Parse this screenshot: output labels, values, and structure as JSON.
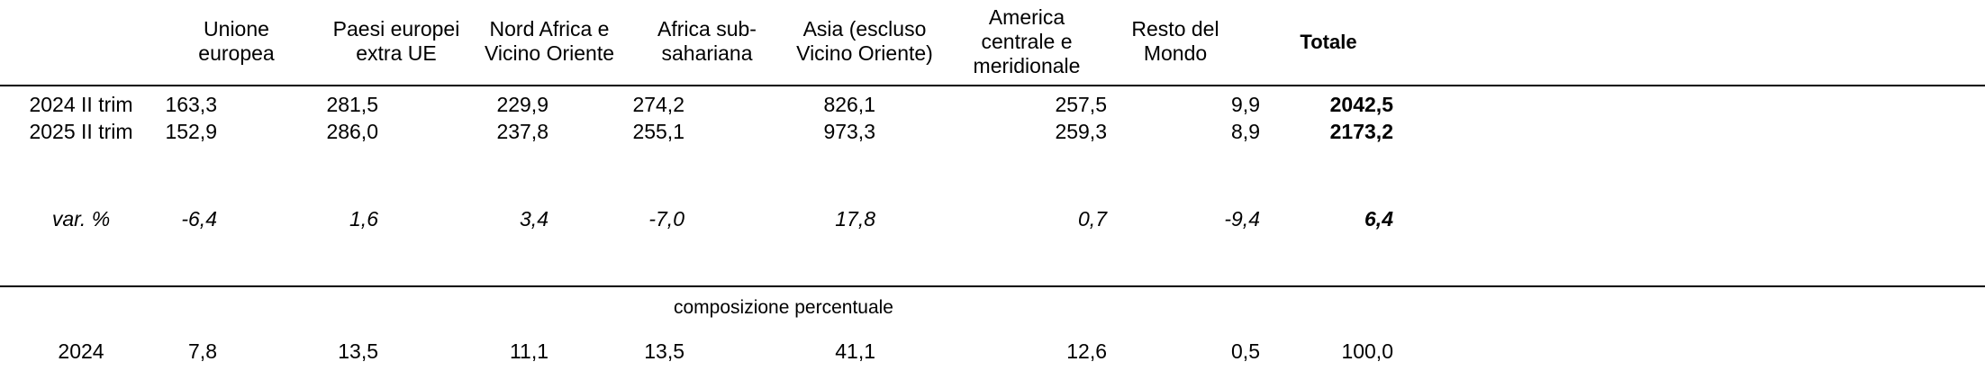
{
  "columns": [
    "Unione\neuropea",
    "Paesi europei\nextra UE",
    "Nord Africa e\nVicino Oriente",
    "Africa sub-\nsahariana",
    "Asia (escluso\nVicino Oriente)",
    "America\ncentrale e\nmeridionale",
    "Resto del\nMondo",
    "Totale"
  ],
  "rows": [
    {
      "label": "2024 II trim",
      "values": [
        "163,3",
        "281,5",
        "229,9",
        "274,2",
        "826,1",
        "257,5",
        "9,9",
        "2042,5"
      ]
    },
    {
      "label": "2025 II trim",
      "values": [
        "152,9",
        "286,0",
        "237,8",
        "255,1",
        "973,3",
        "259,3",
        "8,9",
        "2173,2"
      ]
    }
  ],
  "variation": {
    "label": "var. %",
    "values": [
      "-6,4",
      "1,6",
      "3,4",
      "-7,0",
      "17,8",
      "0,7",
      "-9,4",
      "6,4"
    ]
  },
  "composition": {
    "title": "composizione percentuale",
    "row": {
      "label": "2024",
      "values": [
        "7,8",
        "13,5",
        "11,1",
        "13,5",
        "41,1",
        "12,6",
        "0,5",
        "100,0"
      ]
    }
  }
}
